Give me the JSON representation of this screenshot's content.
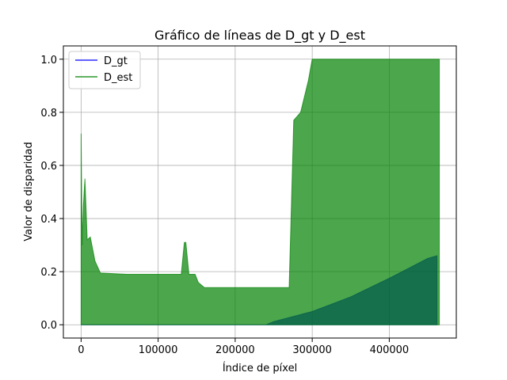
{
  "chart_data": {
    "type": "line",
    "title": "Gráfico de líneas de D_gt y D_est",
    "xlabel": "Índice de píxel",
    "ylabel": "Valor de disparidad",
    "xlim": [
      -23000,
      487000
    ],
    "ylim": [
      -0.05,
      1.05
    ],
    "xticks": [
      0,
      100000,
      200000,
      300000,
      400000
    ],
    "xtick_labels": [
      "0",
      "100000",
      "200000",
      "300000",
      "400000"
    ],
    "yticks": [
      0.0,
      0.2,
      0.4,
      0.6,
      0.8,
      1.0
    ],
    "ytick_labels": [
      "0.0",
      "0.2",
      "0.4",
      "0.6",
      "0.8",
      "1.0"
    ],
    "grid": true,
    "legend_position": "top-left",
    "series": [
      {
        "name": "D_gt",
        "color": "#0000ff",
        "opacity": 0.7,
        "envelope": {
          "x": [
            0,
            240000,
            250000,
            300000,
            350000,
            400000,
            450000,
            462000
          ],
          "lower": [
            0,
            0,
            0,
            0,
            0,
            0,
            0,
            0
          ],
          "upper": [
            0,
            0,
            0.012,
            0.05,
            0.105,
            0.175,
            0.25,
            0.26
          ]
        }
      },
      {
        "name": "D_est",
        "color": "#008000",
        "opacity": 0.7,
        "envelope": {
          "x": [
            0,
            500,
            1500,
            3000,
            5000,
            8000,
            12000,
            18000,
            25000,
            60000,
            130000,
            134000,
            136000,
            140000,
            148000,
            152000,
            160000,
            200000,
            270000,
            276000,
            285000,
            295000,
            300000,
            360000,
            420000,
            460000,
            465000
          ],
          "lower": [
            0,
            0,
            0,
            0,
            0,
            0,
            0,
            0,
            0,
            0,
            0,
            0,
            0,
            0,
            0,
            0,
            0,
            0,
            0,
            0,
            0,
            0,
            0,
            0,
            0,
            0,
            0
          ],
          "upper": [
            0.72,
            0.55,
            0.3,
            0.45,
            0.55,
            0.32,
            0.33,
            0.24,
            0.195,
            0.19,
            0.19,
            0.31,
            0.31,
            0.19,
            0.19,
            0.16,
            0.14,
            0.14,
            0.14,
            0.77,
            0.8,
            0.92,
            1.0,
            1.0,
            1.0,
            1.0,
            1.0
          ]
        }
      }
    ]
  }
}
